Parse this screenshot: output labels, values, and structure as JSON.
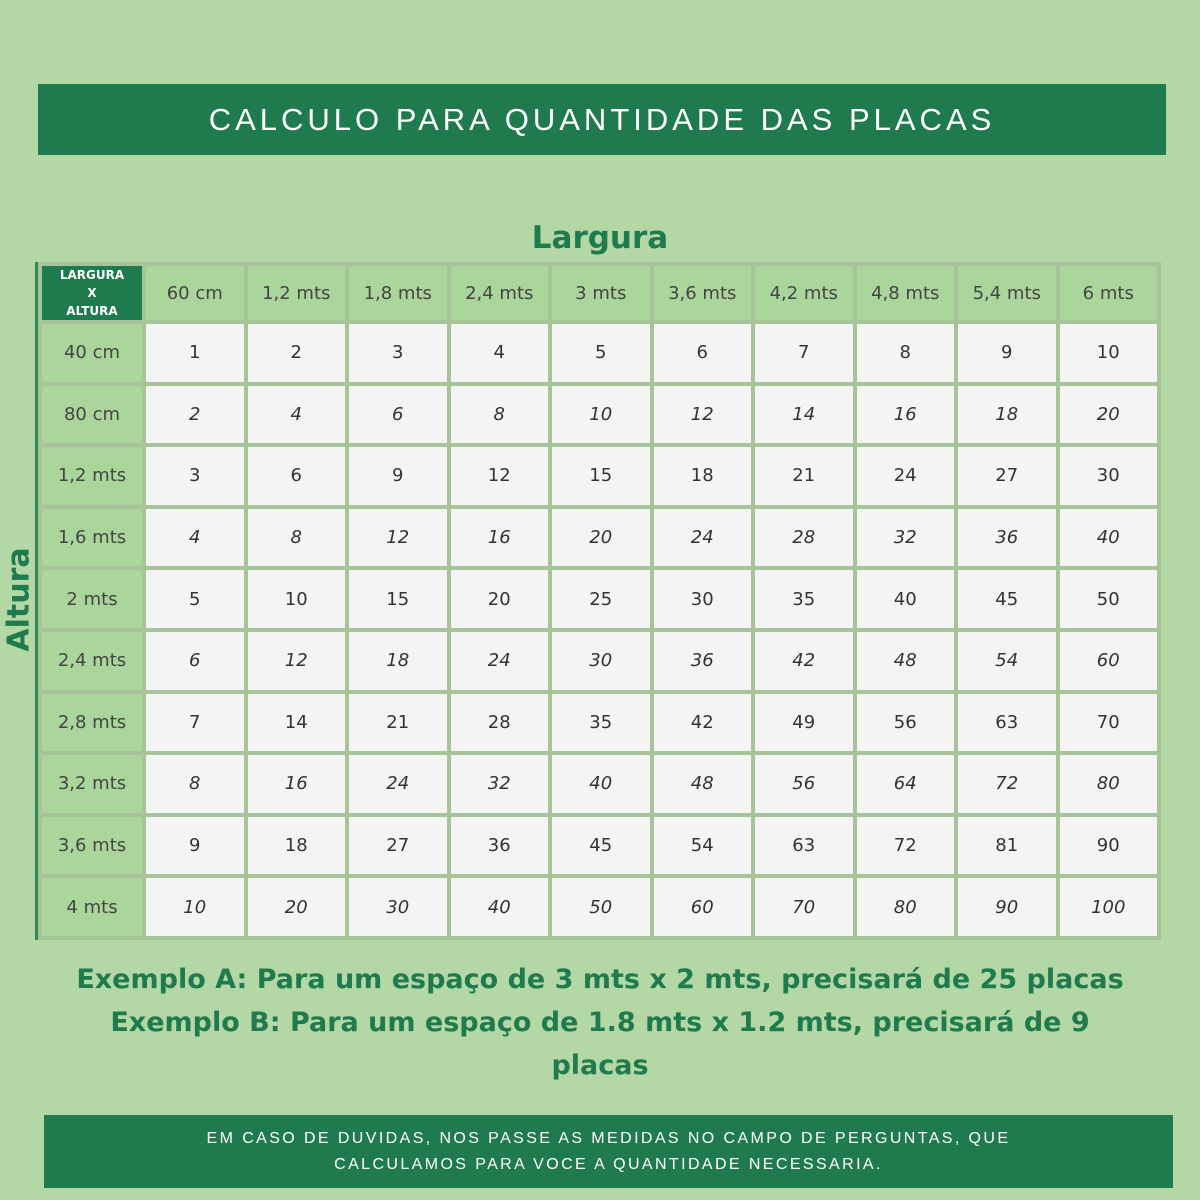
{
  "title": "CALCULO PARA QUANTIDADE DAS PLACAS",
  "axis_top": "Largura",
  "axis_left": "Altura",
  "table": {
    "corner": [
      "LARGURA",
      "X",
      "ALTURA"
    ],
    "columns": [
      "60 cm",
      "1,2 mts",
      "1,8 mts",
      "2,4 mts",
      "3 mts",
      "3,6 mts",
      "4,2 mts",
      "4,8 mts",
      "5,4 mts",
      "6 mts"
    ],
    "rows": [
      {
        "label": "40 cm",
        "values": [
          1,
          2,
          3,
          4,
          5,
          6,
          7,
          8,
          9,
          10
        ]
      },
      {
        "label": "80 cm",
        "values": [
          2,
          4,
          6,
          8,
          10,
          12,
          14,
          16,
          18,
          20
        ]
      },
      {
        "label": "1,2 mts",
        "values": [
          3,
          6,
          9,
          12,
          15,
          18,
          21,
          24,
          27,
          30
        ]
      },
      {
        "label": "1,6 mts",
        "values": [
          4,
          8,
          12,
          16,
          20,
          24,
          28,
          32,
          36,
          40
        ]
      },
      {
        "label": "2 mts",
        "values": [
          5,
          10,
          15,
          20,
          25,
          30,
          35,
          40,
          45,
          50
        ]
      },
      {
        "label": "2,4 mts",
        "values": [
          6,
          12,
          18,
          24,
          30,
          36,
          42,
          48,
          54,
          60
        ]
      },
      {
        "label": "2,8 mts",
        "values": [
          7,
          14,
          21,
          28,
          35,
          42,
          49,
          56,
          63,
          70
        ]
      },
      {
        "label": "3,2 mts",
        "values": [
          8,
          16,
          24,
          32,
          40,
          48,
          56,
          64,
          72,
          80
        ]
      },
      {
        "label": "3,6 mts",
        "values": [
          9,
          18,
          27,
          36,
          45,
          54,
          63,
          72,
          81,
          90
        ]
      },
      {
        "label": "4 mts",
        "values": [
          10,
          20,
          30,
          40,
          50,
          60,
          70,
          80,
          90,
          100
        ]
      }
    ]
  },
  "examples": [
    "Exemplo A: Para um espaço de 3 mts x 2 mts, precisará de 25 placas",
    "Exemplo B: Para um espaço de 1.8 mts x 1.2 mts, precisará de 9 placas"
  ],
  "footer": [
    "EM CASO DE DUVIDAS, NOS PASSE AS MEDIDAS NO CAMPO DE PERGUNTAS, QUE",
    "CALCULAMOS PARA VOCE A QUANTIDADE NECESSARIA."
  ],
  "colors": {
    "brand": "#1f7a4d",
    "background": "#b3d8a6",
    "header_cell": "#aad59b",
    "value_cell": "#f3f4f3"
  }
}
